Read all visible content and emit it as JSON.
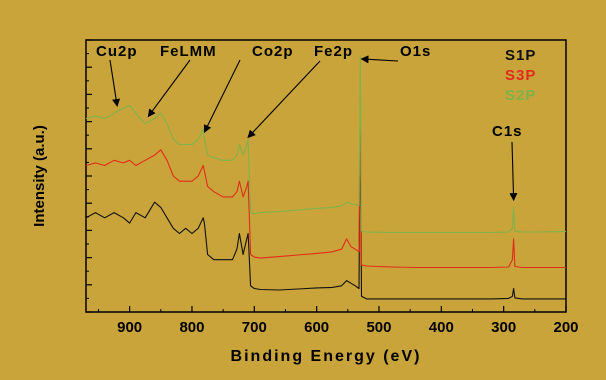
{
  "chart_data": {
    "type": "line",
    "xlabel": "Binding Energy (eV)",
    "ylabel": "Intensity (a.u.)",
    "xlim": [
      970,
      200
    ],
    "x_reversed": true,
    "xticks": [
      900,
      800,
      700,
      600,
      500,
      400,
      300,
      200
    ],
    "y_ticks_unlabeled": true,
    "grid": false,
    "legend_position": "top-right",
    "series": [
      {
        "name": "S1P",
        "color": "#111111",
        "x": [
          970,
          955,
          940,
          925,
          910,
          900,
          890,
          875,
          860,
          850,
          840,
          830,
          820,
          810,
          800,
          790,
          782,
          780,
          775,
          765,
          750,
          735,
          728,
          724,
          718,
          712,
          710,
          706,
          700,
          690,
          660,
          630,
          600,
          575,
          560,
          552,
          545,
          538,
          532,
          530,
          528,
          520,
          480,
          440,
          400,
          360,
          320,
          292,
          286,
          284,
          282,
          270,
          240,
          200
        ],
        "values": [
          16,
          17,
          16,
          17,
          16,
          15,
          17,
          16,
          19,
          18,
          16,
          14,
          13,
          14,
          13,
          14,
          16,
          15,
          9,
          8,
          8,
          8,
          10,
          13,
          9,
          12,
          13,
          3,
          2.5,
          2.3,
          2.2,
          2.4,
          2.6,
          2.7,
          3,
          4,
          3.5,
          3,
          2.5,
          39,
          1,
          0.5,
          0.5,
          0.5,
          0.5,
          0.5,
          0.5,
          0.6,
          1,
          2.5,
          0.7,
          0.5,
          0.5,
          0.5
        ]
      },
      {
        "name": "S3P",
        "color": "#e22c1a",
        "x": [
          970,
          955,
          940,
          925,
          910,
          900,
          890,
          875,
          860,
          850,
          840,
          830,
          820,
          810,
          800,
          790,
          782,
          780,
          775,
          765,
          750,
          735,
          728,
          724,
          718,
          712,
          710,
          706,
          700,
          690,
          660,
          630,
          600,
          575,
          560,
          552,
          545,
          538,
          532,
          530,
          528,
          520,
          480,
          440,
          400,
          360,
          320,
          292,
          286,
          284,
          282,
          270,
          240,
          200
        ],
        "values": [
          26,
          26.5,
          26,
          27,
          26.5,
          27,
          26,
          27,
          28,
          29,
          27,
          24,
          23,
          23,
          23,
          24,
          26,
          25,
          22,
          21,
          20,
          20,
          21,
          23,
          20,
          22,
          23,
          9,
          8.5,
          8.3,
          8.6,
          8.9,
          9.2,
          9.5,
          10,
          12,
          10.5,
          10,
          9.5,
          37,
          7,
          6.8,
          6.6,
          6.5,
          6.5,
          6.5,
          6.5,
          6.6,
          8,
          12,
          6.7,
          6.5,
          6.5,
          6.5
        ]
      },
      {
        "name": "S2P",
        "color": "#7fb34a",
        "x": [
          970,
          955,
          940,
          925,
          910,
          900,
          890,
          875,
          860,
          850,
          840,
          830,
          820,
          810,
          800,
          790,
          782,
          780,
          775,
          765,
          750,
          735,
          728,
          724,
          718,
          712,
          710,
          706,
          700,
          690,
          660,
          630,
          600,
          575,
          560,
          552,
          545,
          538,
          532,
          530,
          528,
          520,
          480,
          440,
          400,
          360,
          320,
          292,
          286,
          284,
          282,
          270,
          240,
          200
        ],
        "values": [
          35,
          35.5,
          35,
          36,
          37,
          37.5,
          36,
          34,
          35,
          36,
          34,
          31,
          30,
          30,
          30,
          31,
          33,
          31,
          28,
          27.5,
          27,
          27,
          28,
          30,
          28,
          30,
          31,
          17,
          16.8,
          17,
          17.2,
          17.5,
          17.8,
          18,
          18.3,
          19,
          18.7,
          18.5,
          18.3,
          47,
          13.5,
          13.3,
          13.2,
          13.2,
          13.2,
          13.2,
          13.2,
          13.3,
          14,
          18,
          13.4,
          13.3,
          13.3,
          13.4
        ]
      }
    ],
    "legend": [
      {
        "label": "S1P",
        "color": "#111111"
      },
      {
        "label": "S3P",
        "color": "#e22c1a"
      },
      {
        "label": "S2P",
        "color": "#7fb34a"
      }
    ],
    "annotations": [
      {
        "text": "Cu2p",
        "target_x": 920,
        "target_y": 37
      },
      {
        "text": "FeLMM",
        "target_x": 870,
        "target_y": 35
      },
      {
        "text": "Co2p",
        "target_x": 780,
        "target_y": 32
      },
      {
        "text": "Fe2p",
        "target_x": 710,
        "target_y": 31
      },
      {
        "text": "O1s",
        "target_x": 528,
        "target_y": 46
      },
      {
        "text": "C1s",
        "target_x": 284,
        "target_y": 19
      }
    ]
  },
  "colors": {
    "background": "#c9a43a",
    "axis": "#000000"
  }
}
